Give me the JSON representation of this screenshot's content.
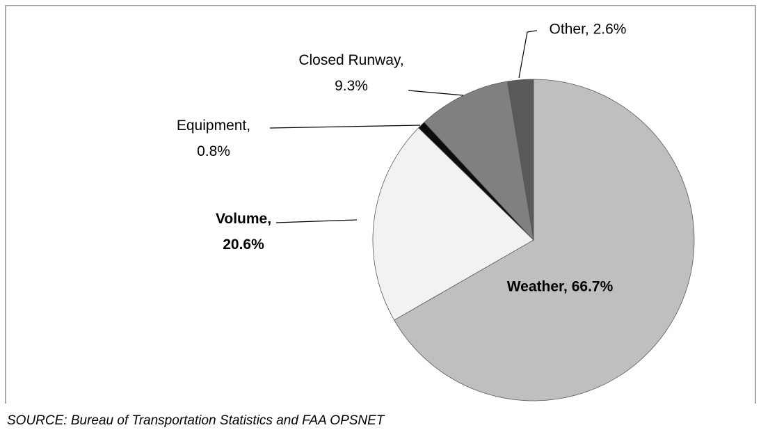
{
  "chart_data": {
    "type": "pie",
    "values": [
      66.7,
      20.6,
      0.8,
      9.3,
      2.6
    ],
    "value_labels": [
      "Weather, 66.7%",
      "Volume, 20.6%",
      "Equipment, 0.8%",
      "Closed Runway, 9.3%",
      "Other, 2.6%"
    ],
    "colors": [
      "#bfbfbf",
      "#f2f2f2",
      "#0d0d0d",
      "#808080",
      "#595959"
    ],
    "source": "SOURCE: Bureau of Transportation Statistics and FAA OPSNET"
  }
}
